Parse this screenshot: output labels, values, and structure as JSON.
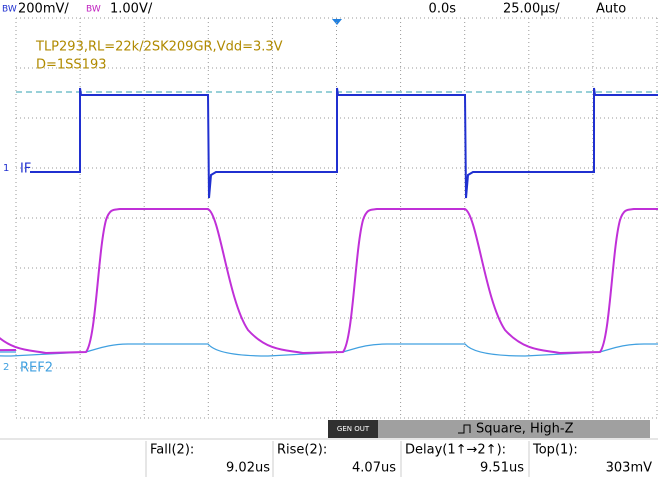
{
  "status_bar": {
    "ch1_bw": "BW",
    "ch1_scale": "200mV/",
    "ch2_bw": "BW",
    "ch2_scale": "1.00V/",
    "time_offset": "0.0s",
    "time_scale": "25.00µs/",
    "trigger_mode": "Auto"
  },
  "annotation": {
    "line1": "TLP293,RL=22k/2SK209GR,Vdd=3.3V",
    "line2": "D=1SS193"
  },
  "channels": {
    "ch1_marker": "1",
    "ch1_label": "IF",
    "ref_marker": "2",
    "ref_label": "REF2"
  },
  "generator": {
    "button": "GEN OUT",
    "setting": "Square, High-Z"
  },
  "measurements": [
    {
      "label": "Fall(2):",
      "value": "9.02us"
    },
    {
      "label": "Rise(2):",
      "value": "4.07us"
    },
    {
      "label": "Delay(1↑→2↑):",
      "value": "9.51us"
    },
    {
      "label": "Top(1):",
      "value": "303mV"
    }
  ]
}
